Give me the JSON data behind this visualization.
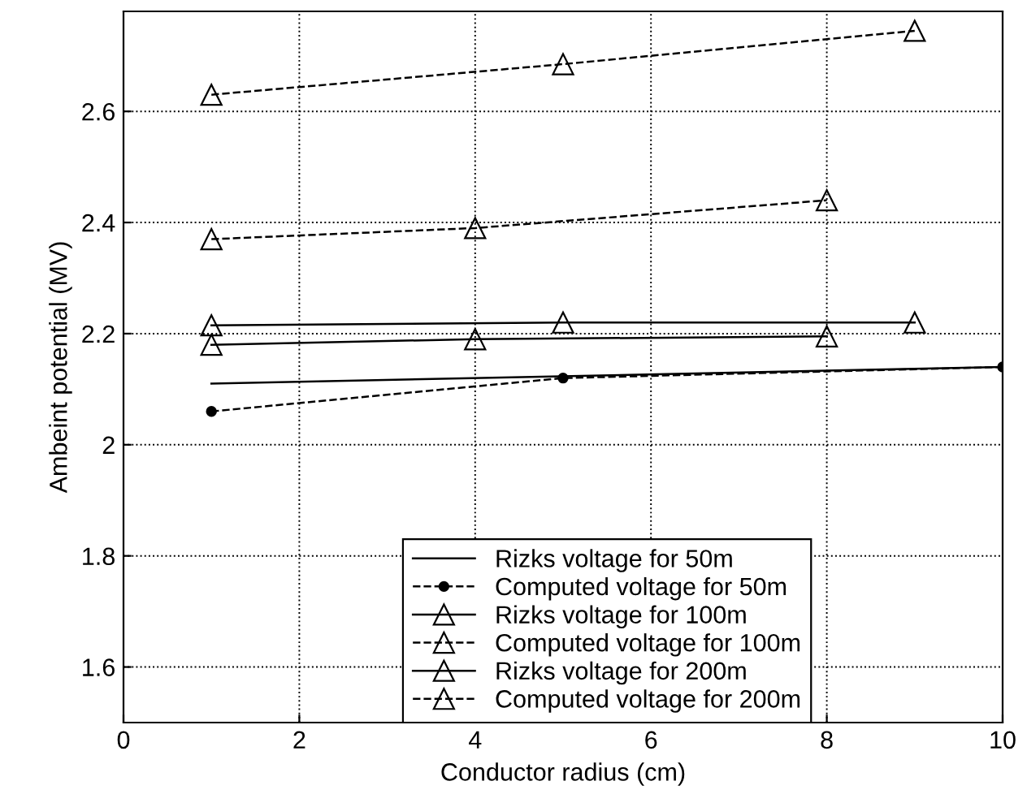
{
  "chart_data": {
    "type": "line",
    "xlabel": "Conductor radius (cm)",
    "ylabel": "Ambeint potential (MV)",
    "xlim": [
      0,
      10
    ],
    "xticks": [
      0,
      2,
      4,
      6,
      8,
      10
    ],
    "ylim": [
      1.5,
      2.78
    ],
    "yticks": [
      1.6,
      1.8,
      2,
      2.2,
      2.4,
      2.6
    ],
    "grid": true,
    "legend": "bottom",
    "series": [
      {
        "name": "Rizks voltage for 50m",
        "color": "#000000",
        "x": [
          1,
          10
        ],
        "values": [
          2.11,
          2.14
        ],
        "line_style": "solid"
      },
      {
        "name": "Computed voltage for 50m",
        "color": "#000000",
        "x": [
          1,
          5,
          10
        ],
        "values": [
          2.06,
          2.12,
          2.14
        ],
        "marker": "circle",
        "line_style": "dashed"
      },
      {
        "name": "Rizks voltage for 100m",
        "color": "#000000",
        "x": [
          1,
          4,
          8
        ],
        "values": [
          2.18,
          2.19,
          2.195
        ],
        "marker": "triangle",
        "line_style": "solid"
      },
      {
        "name": "Computed voltage for 100m",
        "color": "#000000",
        "x": [
          1,
          4,
          8
        ],
        "values": [
          2.37,
          2.39,
          2.44
        ],
        "marker": "triangle",
        "line_style": "dashed"
      },
      {
        "name": "Rizks voltage for 200m",
        "color": "#000000",
        "x": [
          1,
          5,
          9
        ],
        "values": [
          2.215,
          2.22,
          2.22
        ],
        "marker": "triangle",
        "line_style": "solid"
      },
      {
        "name": "Computed voltage for 200m",
        "color": "#000000",
        "x": [
          1,
          5,
          9
        ],
        "values": [
          2.63,
          2.685,
          2.745
        ],
        "marker": "triangle",
        "line_style": "dashed"
      }
    ]
  }
}
